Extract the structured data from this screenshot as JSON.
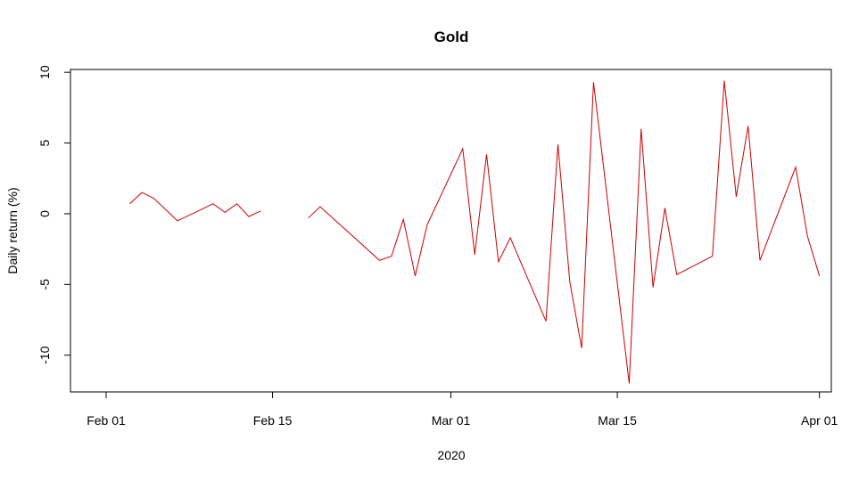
{
  "chart_data": {
    "type": "line",
    "title": "Gold",
    "xlabel": "2020",
    "ylabel": "Daily return (%)",
    "ylim": [
      -12.6,
      10.2
    ],
    "xlim": [
      "2020-01-29",
      "2020-04-02"
    ],
    "x_ticks": [
      {
        "date": "2020-02-01",
        "label": "Feb 01"
      },
      {
        "date": "2020-02-15",
        "label": "Feb 15"
      },
      {
        "date": "2020-03-01",
        "label": "Mar 01"
      },
      {
        "date": "2020-03-15",
        "label": "Mar 15"
      },
      {
        "date": "2020-04-01",
        "label": "Apr 01"
      }
    ],
    "y_ticks": [
      -10,
      -5,
      0,
      5,
      10
    ],
    "grid": false,
    "series": [
      {
        "color": "#cc0000",
        "points": [
          {
            "x": "2020-02-03",
            "y": 0.7
          },
          {
            "x": "2020-02-04",
            "y": 1.5
          },
          {
            "x": "2020-02-05",
            "y": 1.1
          },
          {
            "x": "2020-02-07",
            "y": -0.5
          },
          {
            "x": "2020-02-10",
            "y": 0.7
          },
          {
            "x": "2020-02-11",
            "y": 0.1
          },
          {
            "x": "2020-02-12",
            "y": 0.7
          },
          {
            "x": "2020-02-13",
            "y": -0.2
          },
          {
            "x": "2020-02-14",
            "y": 0.2
          },
          {
            "x": "2020-02-17",
            "y": null
          },
          {
            "x": "2020-02-18",
            "y": -0.3
          },
          {
            "x": "2020-02-19",
            "y": 0.5
          },
          {
            "x": "2020-02-24",
            "y": -3.3
          },
          {
            "x": "2020-02-25",
            "y": -3.0
          },
          {
            "x": "2020-02-26",
            "y": -0.4
          },
          {
            "x": "2020-02-27",
            "y": -4.4
          },
          {
            "x": "2020-02-28",
            "y": -0.8
          },
          {
            "x": "2020-03-02",
            "y": 4.6
          },
          {
            "x": "2020-03-03",
            "y": -2.9
          },
          {
            "x": "2020-03-04",
            "y": 4.2
          },
          {
            "x": "2020-03-05",
            "y": -3.4
          },
          {
            "x": "2020-03-06",
            "y": -1.7
          },
          {
            "x": "2020-03-09",
            "y": -7.6
          },
          {
            "x": "2020-03-10",
            "y": 4.9
          },
          {
            "x": "2020-03-11",
            "y": -4.8
          },
          {
            "x": "2020-03-12",
            "y": -9.5
          },
          {
            "x": "2020-03-13",
            "y": 9.3
          },
          {
            "x": "2020-03-16",
            "y": -12.0
          },
          {
            "x": "2020-03-17",
            "y": 6.0
          },
          {
            "x": "2020-03-18",
            "y": -5.2
          },
          {
            "x": "2020-03-19",
            "y": 0.4
          },
          {
            "x": "2020-03-20",
            "y": -4.3
          },
          {
            "x": "2020-03-23",
            "y": -3.0
          },
          {
            "x": "2020-03-24",
            "y": 9.4
          },
          {
            "x": "2020-03-25",
            "y": 1.2
          },
          {
            "x": "2020-03-26",
            "y": 6.2
          },
          {
            "x": "2020-03-27",
            "y": -3.3
          },
          {
            "x": "2020-03-30",
            "y": 3.3
          },
          {
            "x": "2020-03-31",
            "y": -1.6
          },
          {
            "x": "2020-04-01",
            "y": -4.4
          }
        ]
      }
    ]
  }
}
